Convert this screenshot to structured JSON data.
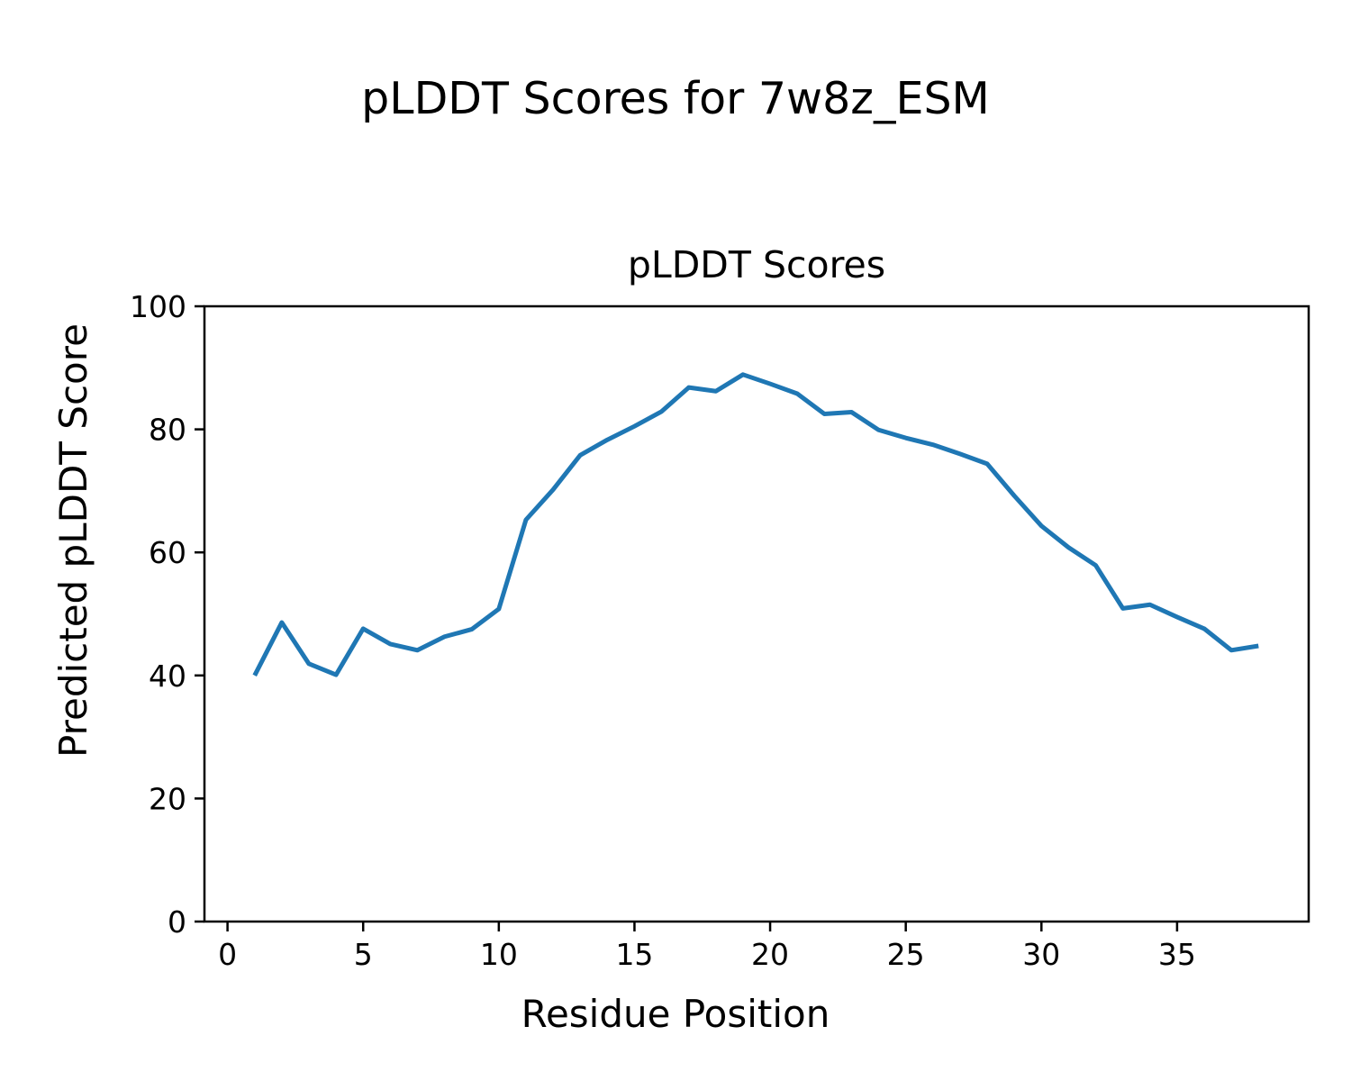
{
  "figure": {
    "suptitle": "pLDDT Scores for 7w8z_ESM",
    "background": "#ffffff"
  },
  "chart_data": {
    "type": "line",
    "title": "pLDDT Scores",
    "xlabel": "Residue Position",
    "ylabel": "Predicted pLDDT Score",
    "x": [
      1,
      2,
      3,
      4,
      5,
      6,
      7,
      8,
      9,
      10,
      11,
      12,
      13,
      14,
      15,
      16,
      17,
      18,
      19,
      20,
      21,
      22,
      23,
      24,
      25,
      26,
      27,
      28,
      29,
      30,
      31,
      32,
      33,
      34,
      35,
      36,
      37,
      38
    ],
    "y": [
      40.0,
      48.6,
      41.9,
      40.1,
      47.6,
      45.1,
      44.1,
      46.3,
      47.5,
      50.8,
      65.3,
      70.2,
      75.8,
      78.3,
      80.5,
      82.9,
      86.8,
      86.2,
      88.9,
      87.4,
      85.8,
      82.5,
      82.8,
      79.9,
      78.6,
      77.5,
      76.0,
      74.4,
      69.2,
      64.3,
      60.8,
      57.9,
      50.9,
      51.5,
      49.5,
      47.6,
      44.1,
      44.8
    ],
    "xlim": [
      -0.85,
      39.85
    ],
    "ylim": [
      0,
      100
    ],
    "xticks": [
      0,
      5,
      10,
      15,
      20,
      25,
      30,
      35
    ],
    "yticks": [
      0,
      20,
      40,
      60,
      80,
      100
    ],
    "line_color": "#1f77b4",
    "axis_color": "#000000",
    "grid": false,
    "legend": "none"
  }
}
